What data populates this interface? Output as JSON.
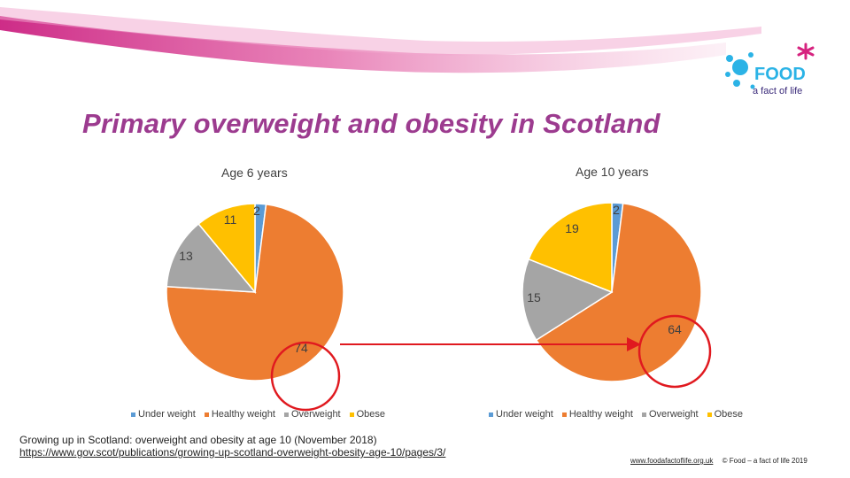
{
  "title": "Primary overweight and obesity in Scotland",
  "logo": {
    "text_1": "FOOD",
    "text_2": "a fact of life"
  },
  "colors": {
    "banner": "#e56fad",
    "title": "#9c3b8f",
    "highlight_circle": "#e0191f",
    "arrow": "#e0191f",
    "Under weight": "#5b9bd5",
    "Healthy weight": "#ed7d31",
    "Overweight": "#a5a5a5",
    "Obese": "#ffc000"
  },
  "chart_data": [
    {
      "type": "pie",
      "title": "Age 6 years",
      "categories": [
        "Under weight",
        "Healthy weight",
        "Overweight",
        "Obese"
      ],
      "values": [
        2,
        74,
        13,
        11
      ],
      "data_labels": [
        "2",
        "74",
        "13",
        "11"
      ],
      "legend_position": "bottom",
      "highlighted_segment": "Healthy weight"
    },
    {
      "type": "pie",
      "title": "Age 10 years",
      "categories": [
        "Under weight",
        "Healthy weight",
        "Overweight",
        "Obese"
      ],
      "values": [
        2,
        64,
        15,
        19
      ],
      "data_labels": [
        "2",
        "64",
        "15",
        "19"
      ],
      "legend_position": "bottom",
      "highlighted_segment": "Healthy weight"
    }
  ],
  "footer": {
    "source_line_1": "Growing up in Scotland: overweight and obesity at age 10 (November 2018)",
    "source_link": "https://www.gov.scot/publications/growing-up-scotland-overweight-obesity-age-10/pages/3/",
    "site": "www.foodafactoflife.org.uk",
    "copyright": "© Food – a fact of life 2019"
  }
}
